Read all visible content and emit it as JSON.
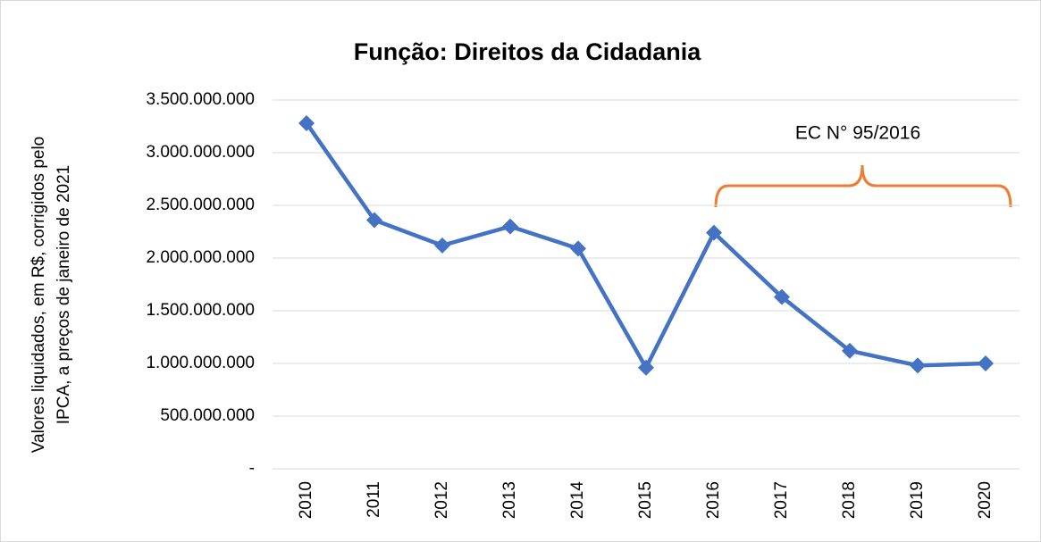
{
  "chart_data": {
    "type": "line",
    "title": "Função: Direitos da Cidadania",
    "ylabel": [
      "Valores liquidados, em R$, corrigidos pelo",
      "IPCA, a preços de janeiro de 2021"
    ],
    "annotation": "EC N° 95/2016",
    "categories": [
      "2010",
      "2011",
      "2012",
      "2013",
      "2014",
      "2015",
      "2016",
      "2017",
      "2018",
      "2019",
      "2020"
    ],
    "values": [
      3280000000,
      2360000000,
      2120000000,
      2300000000,
      2090000000,
      960000000,
      2240000000,
      1630000000,
      1120000000,
      980000000,
      1000000000
    ],
    "color": "#4472c4",
    "ylim": [
      0,
      3500000000
    ],
    "yticks": [
      {
        "value": 0,
        "label": "-"
      },
      {
        "value": 500000000,
        "label": "500.000.000"
      },
      {
        "value": 1000000000,
        "label": "1.000.000.000"
      },
      {
        "value": 1500000000,
        "label": "1.500.000.000"
      },
      {
        "value": 2000000000,
        "label": "2.000.000.000"
      },
      {
        "value": 2500000000,
        "label": "2.500.000.000"
      },
      {
        "value": 3000000000,
        "label": "3.000.000.000"
      },
      {
        "value": 3500000000,
        "label": "3.500.000.000"
      }
    ],
    "grid": true
  }
}
